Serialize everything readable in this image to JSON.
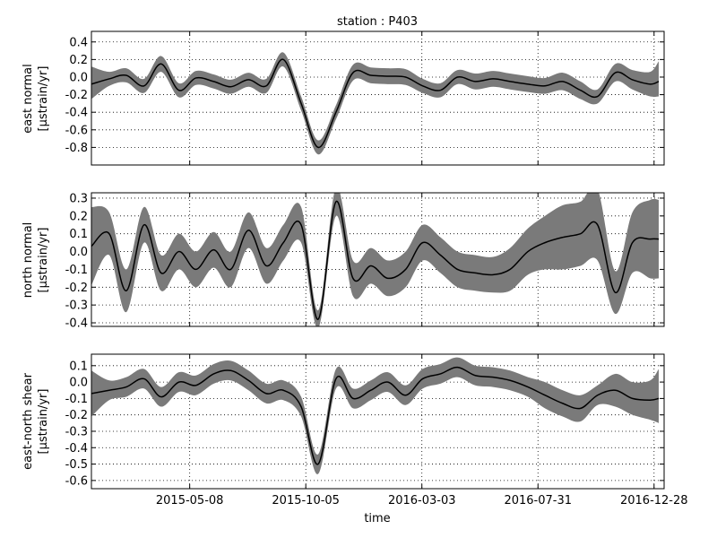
{
  "chart_data": {
    "type": "line",
    "title": "station : P403",
    "xlabel": "time",
    "x": [
      "2015-01-01",
      "2015-01-24",
      "2015-02-15",
      "2015-03-10",
      "2015-04-01",
      "2015-04-24",
      "2015-05-16",
      "2015-06-08",
      "2015-06-30",
      "2015-07-23",
      "2015-08-15",
      "2015-09-06",
      "2015-09-29",
      "2015-10-21",
      "2015-11-13",
      "2015-12-05",
      "2015-12-28",
      "2016-01-19",
      "2016-02-11",
      "2016-03-04",
      "2016-03-27",
      "2016-04-18",
      "2016-05-11",
      "2016-06-03",
      "2016-06-25",
      "2016-07-18",
      "2016-08-09",
      "2016-09-01",
      "2016-09-24",
      "2016-10-16",
      "2016-11-08",
      "2016-11-30",
      "2016-12-23",
      "2017-01-03"
    ],
    "xticks": [
      "2015-05-08",
      "2015-10-05",
      "2016-03-03",
      "2016-07-31",
      "2016-12-28"
    ],
    "xlim": [
      "2015-01-01",
      "2017-01-10"
    ],
    "grid": true,
    "panels": [
      {
        "ylabel": "east normal",
        "unit": "[µstrain/yr]",
        "ylim": [
          -1.0,
          0.52
        ],
        "yticks": [
          "0.4",
          "0.2",
          "0.0",
          "-0.2",
          "-0.4",
          "-0.6",
          "-0.8"
        ],
        "series": [
          {
            "mean": [
              -0.08,
              -0.02,
              0.02,
              -0.1,
              0.15,
              -0.15,
              -0.01,
              -0.05,
              -0.11,
              -0.03,
              -0.1,
              0.2,
              -0.3,
              -0.8,
              -0.4,
              0.05,
              0.02,
              0.01,
              0.0,
              -0.1,
              -0.15,
              0.0,
              -0.05,
              -0.02,
              -0.05,
              -0.08,
              -0.1,
              -0.05,
              -0.15,
              -0.22,
              0.05,
              -0.03,
              -0.08,
              -0.05
            ],
            "lower": [
              -0.25,
              -0.1,
              -0.06,
              -0.18,
              0.06,
              -0.23,
              -0.09,
              -0.13,
              -0.19,
              -0.11,
              -0.18,
              0.12,
              -0.38,
              -0.88,
              -0.48,
              -0.04,
              -0.07,
              -0.08,
              -0.09,
              -0.18,
              -0.23,
              -0.08,
              -0.14,
              -0.11,
              -0.14,
              -0.17,
              -0.19,
              -0.15,
              -0.25,
              -0.3,
              -0.05,
              -0.14,
              -0.22,
              -0.22
            ],
            "upper": [
              0.12,
              0.06,
              0.1,
              -0.02,
              0.24,
              -0.07,
              0.07,
              0.03,
              -0.03,
              0.05,
              -0.02,
              0.28,
              -0.22,
              -0.72,
              -0.32,
              0.14,
              0.11,
              0.1,
              0.09,
              -0.02,
              -0.07,
              0.08,
              0.04,
              0.07,
              0.04,
              0.01,
              -0.01,
              0.05,
              -0.05,
              -0.14,
              0.15,
              0.08,
              0.06,
              0.18
            ]
          }
        ]
      },
      {
        "ylabel": "north normal",
        "unit": "[µstrain/yr]",
        "ylim": [
          -0.42,
          0.33
        ],
        "yticks": [
          "0.3",
          "0.2",
          "0.1",
          "0.0",
          "-0.1",
          "-0.2",
          "-0.3",
          "-0.4"
        ],
        "series": [
          {
            "mean": [
              0.03,
              0.1,
              -0.22,
              0.15,
              -0.12,
              0.0,
              -0.1,
              0.01,
              -0.1,
              0.12,
              -0.08,
              0.05,
              0.15,
              -0.38,
              0.28,
              -0.15,
              -0.08,
              -0.15,
              -0.1,
              0.05,
              -0.02,
              -0.1,
              -0.12,
              -0.13,
              -0.1,
              0.0,
              0.05,
              0.08,
              0.1,
              0.15,
              -0.23,
              0.05,
              0.07,
              0.07
            ],
            "lower": [
              -0.19,
              -0.02,
              -0.34,
              0.05,
              -0.22,
              -0.1,
              -0.2,
              -0.09,
              -0.2,
              0.02,
              -0.18,
              -0.05,
              0.05,
              -0.43,
              0.2,
              -0.25,
              -0.18,
              -0.25,
              -0.2,
              -0.05,
              -0.12,
              -0.2,
              -0.22,
              -0.23,
              -0.22,
              -0.13,
              -0.1,
              -0.1,
              -0.08,
              -0.05,
              -0.35,
              -0.12,
              -0.15,
              -0.15
            ],
            "upper": [
              0.25,
              0.22,
              -0.1,
              0.25,
              -0.02,
              0.1,
              0.0,
              0.11,
              0.0,
              0.22,
              0.02,
              0.15,
              0.25,
              -0.33,
              0.36,
              -0.05,
              0.02,
              -0.05,
              0.0,
              0.15,
              0.08,
              0.0,
              -0.02,
              -0.03,
              0.02,
              0.13,
              0.2,
              0.26,
              0.28,
              0.35,
              -0.11,
              0.22,
              0.29,
              0.29
            ]
          }
        ]
      },
      {
        "ylabel": "east-north shear",
        "unit": "[µstrain/yr]",
        "ylim": [
          -0.65,
          0.17
        ],
        "yticks": [
          "0.1",
          "0.0",
          "-0.1",
          "-0.2",
          "-0.3",
          "-0.4",
          "-0.5",
          "-0.6"
        ],
        "series": [
          {
            "mean": [
              -0.07,
              -0.05,
              -0.03,
              0.02,
              -0.09,
              0.0,
              -0.02,
              0.05,
              0.07,
              0.01,
              -0.07,
              -0.05,
              -0.15,
              -0.5,
              0.02,
              -0.1,
              -0.05,
              0.0,
              -0.08,
              0.02,
              0.05,
              0.09,
              0.04,
              0.03,
              0.01,
              -0.03,
              -0.08,
              -0.13,
              -0.16,
              -0.08,
              -0.05,
              -0.1,
              -0.11,
              -0.1
            ],
            "lower": [
              -0.21,
              -0.11,
              -0.09,
              -0.04,
              -0.15,
              -0.06,
              -0.08,
              -0.01,
              0.01,
              -0.05,
              -0.13,
              -0.11,
              -0.21,
              -0.56,
              -0.04,
              -0.16,
              -0.11,
              -0.06,
              -0.14,
              -0.04,
              -0.01,
              0.03,
              -0.02,
              -0.03,
              -0.05,
              -0.09,
              -0.16,
              -0.21,
              -0.24,
              -0.14,
              -0.15,
              -0.2,
              -0.23,
              -0.25
            ],
            "upper": [
              0.07,
              0.01,
              0.03,
              0.08,
              -0.03,
              0.06,
              0.04,
              0.11,
              0.13,
              0.07,
              -0.01,
              0.01,
              -0.09,
              -0.44,
              0.08,
              -0.04,
              0.01,
              0.06,
              -0.02,
              0.08,
              0.11,
              0.15,
              0.1,
              0.09,
              0.07,
              0.03,
              0.0,
              -0.05,
              -0.08,
              -0.02,
              0.05,
              0.0,
              0.01,
              0.08
            ]
          }
        ]
      }
    ]
  }
}
